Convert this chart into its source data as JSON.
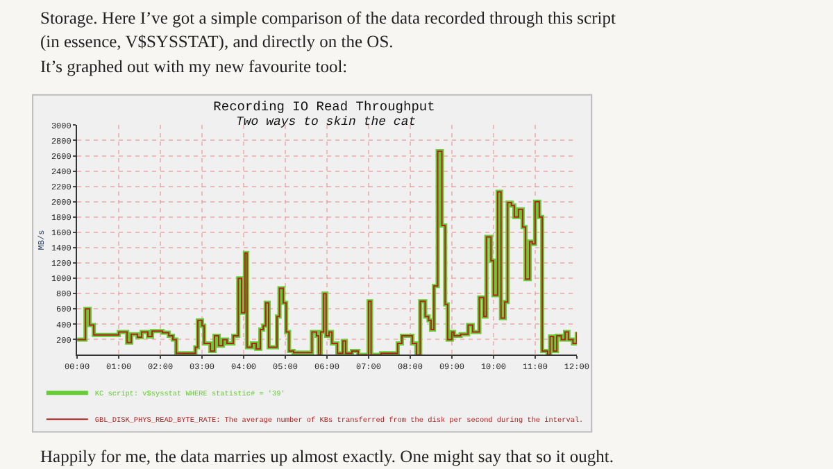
{
  "chart_data": {
    "type": "step",
    "title": "Recording IO Read Throughput",
    "subtitle": "Two ways to skin the cat",
    "ylabel": "MB/s",
    "x": [
      0,
      0.2,
      0.3,
      0.4,
      1.0,
      1.2,
      1.3,
      1.45,
      1.55,
      1.7,
      1.8,
      2.05,
      2.2,
      2.3,
      2.38,
      2.84,
      2.9,
      3.0,
      3.05,
      3.2,
      3.3,
      3.4,
      3.5,
      3.6,
      3.75,
      3.87,
      3.95,
      4.03,
      4.08,
      4.2,
      4.3,
      4.4,
      4.47,
      4.53,
      4.6,
      4.8,
      4.86,
      4.95,
      5.02,
      5.09,
      5.2,
      5.64,
      5.75,
      5.8,
      5.85,
      5.92,
      5.98,
      6.05,
      6.12,
      6.25,
      6.38,
      6.45,
      6.6,
      6.75,
      7.0,
      7.06,
      7.3,
      7.7,
      7.8,
      8.05,
      8.15,
      8.24,
      8.36,
      8.44,
      8.5,
      8.57,
      8.66,
      8.76,
      8.84,
      8.9,
      9.0,
      9.05,
      9.21,
      9.39,
      9.5,
      9.66,
      9.77,
      9.83,
      9.94,
      10.0,
      10.1,
      10.18,
      10.27,
      10.34,
      10.43,
      10.5,
      10.6,
      10.7,
      10.77,
      10.87,
      10.93,
      11.0,
      11.1,
      11.17,
      11.3,
      11.36,
      11.44,
      11.52,
      11.63,
      11.72,
      11.8,
      11.91,
      12.0
    ],
    "series": [
      {
        "name": "KC script: v$sysstat WHERE statistic# = '39'",
        "color": "#66cc33",
        "values": [
          200,
          600,
          390,
          260,
          300,
          160,
          270,
          230,
          300,
          240,
          310,
          290,
          250,
          200,
          20,
          100,
          450,
          380,
          150,
          50,
          250,
          120,
          200,
          150,
          250,
          1000,
          550,
          1330,
          100,
          150,
          80,
          330,
          380,
          680,
          100,
          500,
          870,
          680,
          300,
          50,
          30,
          300,
          250,
          0,
          300,
          800,
          250,
          300,
          150,
          20,
          180,
          20,
          50,
          0,
          700,
          0,
          20,
          150,
          250,
          150,
          0,
          700,
          500,
          450,
          330,
          900,
          2660,
          1690,
          660,
          200,
          300,
          250,
          270,
          390,
          300,
          750,
          500,
          1540,
          1230,
          780,
          2130,
          480,
          690,
          1990,
          1950,
          1800,
          1900,
          1670,
          990,
          1480,
          1450,
          2000,
          1800,
          50,
          0,
          240,
          50,
          250,
          200,
          300,
          200,
          150,
          300
        ]
      },
      {
        "name": "GBL_DISK_PHYS_READ_BYTE_RATE: The average number of KBs transferred from the disk per second during the interval.",
        "color": "#b22222",
        "values": [
          200,
          600,
          390,
          260,
          300,
          160,
          270,
          230,
          300,
          240,
          310,
          290,
          250,
          200,
          20,
          100,
          450,
          380,
          150,
          50,
          250,
          120,
          200,
          150,
          250,
          1000,
          550,
          1330,
          100,
          150,
          80,
          330,
          380,
          680,
          100,
          500,
          870,
          680,
          300,
          50,
          30,
          300,
          250,
          0,
          300,
          800,
          250,
          300,
          150,
          20,
          180,
          20,
          50,
          0,
          700,
          0,
          20,
          150,
          250,
          150,
          0,
          700,
          500,
          450,
          330,
          900,
          2660,
          1690,
          660,
          200,
          300,
          250,
          270,
          390,
          300,
          750,
          500,
          1540,
          1230,
          780,
          2130,
          480,
          690,
          1990,
          1950,
          1800,
          1900,
          1670,
          990,
          1480,
          1450,
          2000,
          1800,
          50,
          0,
          240,
          50,
          250,
          200,
          300,
          200,
          150,
          300
        ]
      }
    ],
    "xlim": [
      0,
      12
    ],
    "xticks": [
      {
        "value": 0,
        "label": "00:00"
      },
      {
        "value": 1,
        "label": "01:00"
      },
      {
        "value": 2,
        "label": "02:00"
      },
      {
        "value": 3,
        "label": "03:00"
      },
      {
        "value": 4,
        "label": "04:00"
      },
      {
        "value": 5,
        "label": "05:00"
      },
      {
        "value": 6,
        "label": "06:00"
      },
      {
        "value": 7,
        "label": "07:00"
      },
      {
        "value": 8,
        "label": "08:00"
      },
      {
        "value": 9,
        "label": "09:00"
      },
      {
        "value": 10,
        "label": "10:00"
      },
      {
        "value": 11,
        "label": "11:00"
      },
      {
        "value": 12,
        "label": "12:00"
      }
    ],
    "ylim": [
      0,
      3000
    ],
    "yticks": [
      200,
      400,
      600,
      800,
      1000,
      1200,
      1400,
      1600,
      1800,
      2000,
      2200,
      2400,
      2600,
      2800,
      3000
    ],
    "grid": true,
    "legend": "bottom",
    "marker": "none",
    "line_style": "solid",
    "annotations": [
      "Storage. Here I’ve got a simple comparison of the data recorded through this script",
      "(in essence, V$SYSSTAT), and directly on the OS.",
      "It’s graphed out with my new favourite tool:",
      "Happily for me, the data marries up almost exactly. One might say that so it ought."
    ]
  }
}
